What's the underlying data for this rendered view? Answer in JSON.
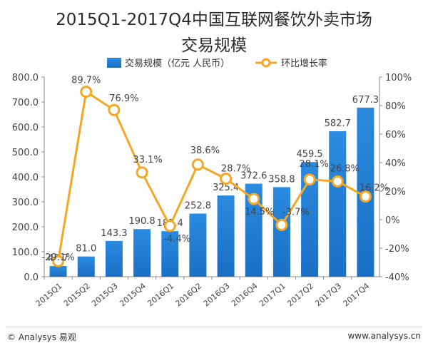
{
  "chart_data": {
    "type": "bar",
    "title_line1": "2015Q1-2017Q4中国互联网餐饮外卖市场",
    "title_line2": "交易规模",
    "categories": [
      "2015Q1",
      "2015Q2",
      "2015Q3",
      "2015Q4",
      "2016Q1",
      "2016Q2",
      "2016Q3",
      "2016Q4",
      "2017Q1",
      "2017Q2",
      "2017Q3",
      "2017Q4"
    ],
    "series": [
      {
        "name": "交易规模（亿元 人民币）",
        "kind": "bar",
        "axis": "left",
        "color": "#1f7fd0",
        "values": [
          42.7,
          81.0,
          143.3,
          190.8,
          182.4,
          252.8,
          325.4,
          372.6,
          358.8,
          459.5,
          582.7,
          677.3
        ],
        "labels": [
          "42.7",
          "81.0",
          "143.3",
          "190.8",
          "182.4",
          "252.8",
          "325.4",
          "372.6",
          "358.8",
          "459.5",
          "582.7",
          "677.3"
        ]
      },
      {
        "name": "环比增长率",
        "kind": "line",
        "axis": "right",
        "color": "#f5a623",
        "values": [
          -29.1,
          89.7,
          76.9,
          33.1,
          -4.4,
          38.6,
          28.7,
          14.5,
          -3.7,
          28.1,
          26.8,
          16.2
        ],
        "labels": [
          "-29.1%",
          "89.7%",
          "76.9%",
          "33.1%",
          "-4.4%",
          "38.6%",
          "28.7%",
          "14.5%",
          "-3.7%",
          "28.1%",
          "26.8%",
          "16.2%"
        ]
      }
    ],
    "y_left": {
      "ylim": [
        0,
        800
      ],
      "ticks": [
        "0.0",
        "100.0",
        "200.0",
        "300.0",
        "400.0",
        "500.0",
        "600.0",
        "700.0",
        "800.0"
      ]
    },
    "y_right": {
      "ylim": [
        -40,
        100
      ],
      "ticks": [
        "-40%",
        "-20%",
        "0%",
        "20%",
        "40%",
        "60%",
        "80%",
        "100%"
      ]
    },
    "grid": false,
    "legend_position": "top-center"
  },
  "footer": {
    "copyright": "© Analysys 易观",
    "website": "www.analysys.cn"
  }
}
